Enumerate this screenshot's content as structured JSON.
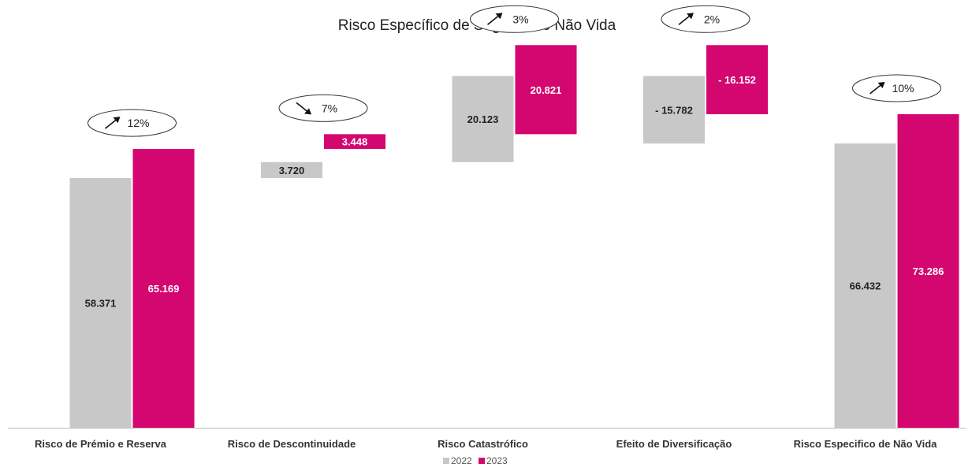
{
  "chart_data": {
    "type": "bar",
    "subtype": "waterfall",
    "title": "Risco Específico de Seguros de Não Vida",
    "categories": [
      "Risco de Prémio e Reserva",
      "Risco de Descontinuidade",
      "Risco Catastrófico",
      "Efeito de Diversificação",
      "Risco Especifico de Não Vida"
    ],
    "series": [
      {
        "name": "2022",
        "color": "#c8c8c8",
        "values": [
          58371,
          3720,
          20123,
          -15782,
          66432
        ],
        "labels": [
          "58.371",
          "3.720",
          "20.123",
          "- 15.782",
          "66.432"
        ]
      },
      {
        "name": "2023",
        "color": "#d4066f",
        "values": [
          65169,
          3448,
          20821,
          -16152,
          73286
        ],
        "labels": [
          "65.169",
          "3.448",
          "20.821",
          "- 16.152",
          "73.286"
        ]
      }
    ],
    "changes": [
      {
        "direction": "up",
        "label": "12%"
      },
      {
        "direction": "down",
        "label": "7%"
      },
      {
        "direction": "up",
        "label": "3%"
      },
      {
        "direction": "up",
        "label": "2%"
      },
      {
        "direction": "up",
        "label": "10%"
      }
    ],
    "legend": {
      "position": "bottom",
      "items": [
        "2022",
        "2023"
      ]
    },
    "grid": false
  }
}
